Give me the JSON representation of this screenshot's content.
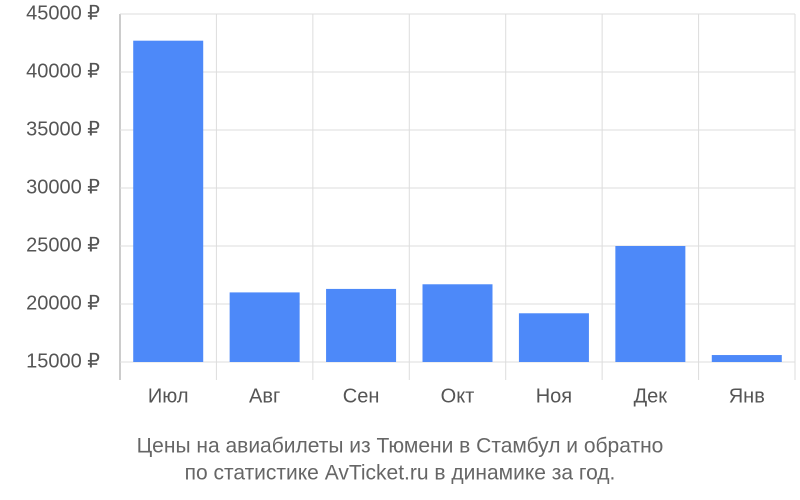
{
  "chart_data": {
    "type": "bar",
    "title_lines": [
      "Цены на авиабилеты из Тюмени в Стамбул и обратно",
      "по статистике AvTicket.ru в динамике за год."
    ],
    "categories": [
      "Июл",
      "Авг",
      "Сен",
      "Окт",
      "Ноя",
      "Дек",
      "Янв"
    ],
    "values": [
      42700,
      21000,
      21300,
      21700,
      19200,
      25000,
      15600
    ],
    "color": "#4d89f9",
    "ylim": [
      15000,
      45000
    ],
    "yticks": [
      {
        "value": 15000,
        "label": "15000 ₽"
      },
      {
        "value": 20000,
        "label": "20000 ₽"
      },
      {
        "value": 25000,
        "label": "25000 ₽"
      },
      {
        "value": 30000,
        "label": "30000 ₽"
      },
      {
        "value": 35000,
        "label": "35000 ₽"
      },
      {
        "value": 40000,
        "label": "40000 ₽"
      },
      {
        "value": 45000,
        "label": "45000 ₽"
      }
    ],
    "grid": true
  }
}
